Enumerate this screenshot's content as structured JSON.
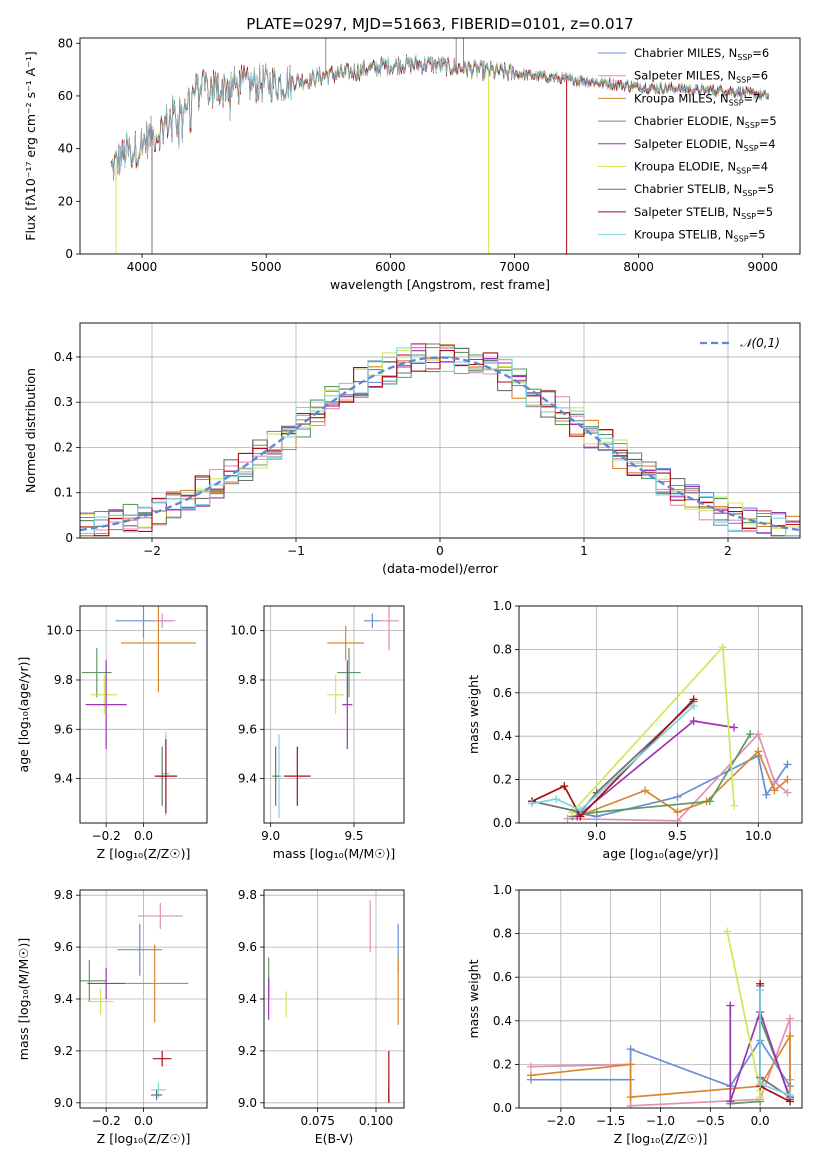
{
  "figure_title": "PLATE=0297, MJD=51663, FIBERID=0101, z=0.017",
  "colors": {
    "cm": "#6a8fd6",
    "sm": "#e18fb8",
    "km": "#d9862f",
    "ce": "#5c9a64",
    "se": "#9a34b0",
    "ke": "#cfe85a",
    "cs": "#6f6f6f",
    "ss": "#a80e16",
    "ks": "#7fd4df"
  },
  "legend": [
    {
      "key": "cm",
      "label": "Chabrier MILES, N",
      "sub": "SSP",
      "eq": "=6"
    },
    {
      "key": "sm",
      "label": "Salpeter MILES, N",
      "sub": "SSP",
      "eq": "=6"
    },
    {
      "key": "km",
      "label": "Kroupa MILES, N",
      "sub": "SSP",
      "eq": "=7"
    },
    {
      "key": "ce",
      "label": "Chabrier ELODIE, N",
      "sub": "SSP",
      "eq": "=5"
    },
    {
      "key": "se",
      "label": "Salpeter ELODIE, N",
      "sub": "SSP",
      "eq": "=4"
    },
    {
      "key": "ke",
      "label": "Kroupa ELODIE, N",
      "sub": "SSP",
      "eq": "=4"
    },
    {
      "key": "cs",
      "label": "Chabrier STELIB, N",
      "sub": "SSP",
      "eq": "=5"
    },
    {
      "key": "ss",
      "label": "Salpeter STELIB, N",
      "sub": "SSP",
      "eq": "=5"
    },
    {
      "key": "ks",
      "label": "Kroupa STELIB, N",
      "sub": "SSP",
      "eq": "=5"
    }
  ],
  "chart_data": [
    {
      "id": "spectrum",
      "type": "line",
      "xlabel": "wavelength [Angstrom, rest frame]",
      "ylabel": "Flux [fλ10⁻¹⁷ erg cm⁻² s⁻¹ A⁻¹]",
      "xlim": [
        3500,
        9300
      ],
      "ylim": [
        0,
        82
      ],
      "xticks": [
        4000,
        5000,
        6000,
        7000,
        8000,
        9000
      ],
      "yticks": [
        0,
        20,
        40,
        60,
        80
      ],
      "continuum": [
        [
          3750,
          32
        ],
        [
          3850,
          38
        ],
        [
          3950,
          40
        ],
        [
          4050,
          44
        ],
        [
          4150,
          47
        ],
        [
          4250,
          53
        ],
        [
          4350,
          58
        ],
        [
          4450,
          62
        ],
        [
          4550,
          63
        ],
        [
          4700,
          64
        ],
        [
          4850,
          64
        ],
        [
          5000,
          65
        ],
        [
          5150,
          65
        ],
        [
          5300,
          66
        ],
        [
          5500,
          68
        ],
        [
          5700,
          69
        ],
        [
          5900,
          71
        ],
        [
          6100,
          72
        ],
        [
          6300,
          72
        ],
        [
          6500,
          71
        ],
        [
          6700,
          70
        ],
        [
          6900,
          69
        ],
        [
          7100,
          68
        ],
        [
          7300,
          67
        ],
        [
          7500,
          66
        ],
        [
          7700,
          65
        ],
        [
          7900,
          64
        ],
        [
          8100,
          63
        ],
        [
          8300,
          63
        ],
        [
          8500,
          62
        ],
        [
          8700,
          62
        ],
        [
          8900,
          61
        ],
        [
          9050,
          60
        ]
      ],
      "drop_outs": [
        {
          "key": "cs",
          "x": 4080,
          "y": 0
        },
        {
          "key": "ke",
          "x": 3790,
          "y": 0
        },
        {
          "key": "ke",
          "x": 6790,
          "y": 0
        },
        {
          "key": "ss",
          "x": 7420,
          "y": 0
        }
      ],
      "spikes": [
        {
          "key": "cs",
          "x": 5480,
          "y": 82
        },
        {
          "key": "cs",
          "x": 6530,
          "y": 82
        },
        {
          "key": "cs",
          "x": 6590,
          "y": 82
        }
      ]
    },
    {
      "id": "residuals",
      "type": "line",
      "xlabel": "(data-model)/error",
      "ylabel": "Normed distribution",
      "xlim": [
        -2.5,
        2.5
      ],
      "ylim": [
        0,
        0.475
      ],
      "xticks": [
        -2,
        -1,
        0,
        1,
        2
      ],
      "yticks": [
        0,
        0.1,
        0.2,
        0.3,
        0.4
      ],
      "reference": {
        "label": "𝒩(0,1)",
        "mean": 0,
        "sigma": 1
      },
      "bin_width": 0.1
    },
    {
      "id": "age-vs-z",
      "type": "scatter",
      "xlabel": "Z [log₁₀(Z/Z☉)]",
      "ylabel": "age  [log₁₀(age/yr)]",
      "xlim": [
        -0.34,
        0.34
      ],
      "ylim": [
        9.22,
        10.1
      ],
      "xticks": [
        -0.2,
        0.0
      ],
      "xticklabels": [
        "−0.2",
        "0.0"
      ],
      "yticks": [
        9.4,
        9.6,
        9.8,
        10.0
      ],
      "yticklabels": [
        "9.4",
        "9.6",
        "9.8",
        "10.0"
      ],
      "points": [
        {
          "key": "cm",
          "x": 0.0,
          "y": 10.04,
          "xerr": 0.15,
          "yerr": 0.07
        },
        {
          "key": "sm",
          "x": 0.1,
          "y": 10.04,
          "xerr": 0.07,
          "yerr": 0.03
        },
        {
          "key": "km",
          "x": 0.08,
          "y": 9.95,
          "xerr": 0.2,
          "yerr": 0.2
        },
        {
          "key": "ce",
          "x": -0.25,
          "y": 9.83,
          "xerr": 0.08,
          "yerr": 0.1
        },
        {
          "key": "ke",
          "x": -0.21,
          "y": 9.74,
          "xerr": 0.07,
          "yerr": 0.08
        },
        {
          "key": "se",
          "x": -0.2,
          "y": 9.7,
          "xerr": 0.11,
          "yerr": 0.18
        },
        {
          "key": "ks",
          "x": 0.12,
          "y": 9.42,
          "xerr": 0.02,
          "yerr": 0.17
        },
        {
          "key": "cs",
          "x": 0.1,
          "y": 9.41,
          "xerr": 0.03,
          "yerr": 0.12
        },
        {
          "key": "ss",
          "x": 0.12,
          "y": 9.41,
          "xerr": 0.06,
          "yerr": 0.15
        }
      ]
    },
    {
      "id": "age-vs-mass",
      "type": "scatter",
      "xlabel": "mass [log₁₀(M/M☉)]",
      "ylabel": "",
      "xlim": [
        8.96,
        9.8
      ],
      "ylim": [
        9.22,
        10.1
      ],
      "xticks": [
        9.0,
        9.5
      ],
      "xticklabels": [
        "9.0",
        "9.5"
      ],
      "yticks": [
        9.4,
        9.6,
        9.8,
        10.0
      ],
      "yticklabels": [
        "9.4",
        "9.6",
        "9.8",
        "10.0"
      ],
      "points": [
        {
          "key": "cm",
          "x": 9.61,
          "y": 10.04,
          "xerr": 0.05,
          "yerr": 0.03
        },
        {
          "key": "sm",
          "x": 9.71,
          "y": 10.04,
          "xerr": 0.06,
          "yerr": 0.12
        },
        {
          "key": "km",
          "x": 9.45,
          "y": 9.95,
          "xerr": 0.11,
          "yerr": 0.07
        },
        {
          "key": "ce",
          "x": 9.47,
          "y": 9.83,
          "xerr": 0.07,
          "yerr": 0.1
        },
        {
          "key": "ke",
          "x": 9.39,
          "y": 9.74,
          "xerr": 0.05,
          "yerr": 0.08
        },
        {
          "key": "se",
          "x": 9.46,
          "y": 9.7,
          "xerr": 0.03,
          "yerr": 0.18
        },
        {
          "key": "ks",
          "x": 9.05,
          "y": 9.41,
          "xerr": 0.02,
          "yerr": 0.17
        },
        {
          "key": "cs",
          "x": 9.03,
          "y": 9.41,
          "xerr": 0.02,
          "yerr": 0.12
        },
        {
          "key": "ss",
          "x": 9.16,
          "y": 9.41,
          "xerr": 0.08,
          "yerr": 0.12
        }
      ]
    },
    {
      "id": "weight-vs-age",
      "type": "line",
      "xlabel": "age  [log₁₀(age/yr)]",
      "ylabel": "mass weight",
      "xlim": [
        8.52,
        10.27
      ],
      "ylim": [
        0,
        1.0
      ],
      "xticks": [
        9.0,
        9.5,
        10.0
      ],
      "xticklabels": [
        "9.0",
        "9.5",
        "10.0"
      ],
      "yticks": [
        0,
        0.2,
        0.4,
        0.6,
        0.8,
        1.0
      ],
      "yticklabels": [
        "0.0",
        "0.2",
        "0.4",
        "0.6",
        "0.8",
        "1.0"
      ],
      "series": [
        {
          "key": "cm",
          "points": [
            [
              8.85,
              0.05
            ],
            [
              9.0,
              0.03
            ],
            [
              9.5,
              0.12
            ],
            [
              10.0,
              0.31
            ],
            [
              10.05,
              0.13
            ],
            [
              10.18,
              0.27
            ]
          ]
        },
        {
          "key": "sm",
          "points": [
            [
              8.82,
              0.02
            ],
            [
              9.5,
              0.01
            ],
            [
              10.0,
              0.41
            ],
            [
              10.1,
              0.19
            ],
            [
              10.18,
              0.14
            ]
          ]
        },
        {
          "key": "km",
          "points": [
            [
              8.88,
              0.03
            ],
            [
              9.3,
              0.15
            ],
            [
              9.5,
              0.05
            ],
            [
              9.68,
              0.1
            ],
            [
              10.0,
              0.33
            ],
            [
              10.1,
              0.15
            ],
            [
              10.18,
              0.2
            ]
          ]
        },
        {
          "key": "ce",
          "points": [
            [
              8.85,
              0.03
            ],
            [
              9.0,
              0.05
            ],
            [
              9.7,
              0.1
            ],
            [
              9.95,
              0.41
            ]
          ]
        },
        {
          "key": "se",
          "points": [
            [
              8.88,
              0.03
            ],
            [
              9.6,
              0.47
            ],
            [
              9.85,
              0.44
            ]
          ]
        },
        {
          "key": "ke",
          "points": [
            [
              8.85,
              0.05
            ],
            [
              9.78,
              0.81
            ],
            [
              9.85,
              0.08
            ]
          ]
        },
        {
          "key": "cs",
          "points": [
            [
              8.6,
              0.1
            ],
            [
              8.9,
              0.05
            ],
            [
              9.0,
              0.14
            ],
            [
              9.6,
              0.56
            ]
          ]
        },
        {
          "key": "ss",
          "points": [
            [
              8.6,
              0.1
            ],
            [
              8.8,
              0.17
            ],
            [
              8.9,
              0.03
            ],
            [
              9.6,
              0.57
            ]
          ]
        },
        {
          "key": "ks",
          "points": [
            [
              8.6,
              0.09
            ],
            [
              8.75,
              0.11
            ],
            [
              8.9,
              0.06
            ],
            [
              9.6,
              0.54
            ]
          ]
        }
      ]
    },
    {
      "id": "mass-vs-z",
      "type": "scatter",
      "xlabel": "Z [log₁₀(Z/Z☉)]",
      "ylabel": "mass [log₁₀(M/M☉)]",
      "xlim": [
        -0.34,
        0.34
      ],
      "ylim": [
        8.98,
        9.82
      ],
      "xticks": [
        -0.2,
        0.0
      ],
      "xticklabels": [
        "−0.2",
        "0.0"
      ],
      "yticks": [
        9.0,
        9.2,
        9.4,
        9.6,
        9.8
      ],
      "yticklabels": [
        "9.0",
        "9.2",
        "9.4",
        "9.6",
        "9.8"
      ],
      "points": [
        {
          "key": "cm",
          "x": -0.02,
          "y": 9.59,
          "xerr": 0.12,
          "yerr": 0.1
        },
        {
          "key": "sm",
          "x": 0.09,
          "y": 9.72,
          "xerr": 0.12,
          "yerr": 0.05
        },
        {
          "key": "km",
          "x": 0.06,
          "y": 9.46,
          "xerr": 0.18,
          "yerr": 0.15
        },
        {
          "key": "ce",
          "x": -0.29,
          "y": 9.47,
          "xerr": 0.09,
          "yerr": 0.08
        },
        {
          "key": "ke",
          "x": -0.23,
          "y": 9.39,
          "xerr": 0.07,
          "yerr": 0.05
        },
        {
          "key": "se",
          "x": -0.2,
          "y": 9.46,
          "xerr": 0.1,
          "yerr": 0.06
        },
        {
          "key": "ks",
          "x": 0.08,
          "y": 9.05,
          "xerr": 0.04,
          "yerr": 0.03
        },
        {
          "key": "cs",
          "x": 0.07,
          "y": 9.03,
          "xerr": 0.03,
          "yerr": 0.02
        },
        {
          "key": "ss",
          "x": 0.1,
          "y": 9.17,
          "xerr": 0.05,
          "yerr": 0.03
        }
      ]
    },
    {
      "id": "mass-vs-ebv",
      "type": "scatter",
      "xlabel": "E(B-V)",
      "ylabel": "",
      "xlim": [
        0.052,
        0.112
      ],
      "ylim": [
        8.98,
        9.82
      ],
      "xticks": [
        0.075,
        0.1
      ],
      "xticklabels": [
        "0.075",
        "0.100"
      ],
      "yticks": [
        9.0,
        9.2,
        9.4,
        9.6,
        9.8
      ],
      "yticklabels": [
        "9.0",
        "9.2",
        "9.4",
        "9.6",
        "9.8"
      ],
      "points": [
        {
          "key": "cm",
          "x": 0.1095,
          "y": 9.6,
          "xerr": 0,
          "yerr": 0.09
        },
        {
          "key": "sm",
          "x": 0.0975,
          "y": 9.68,
          "xerr": 0,
          "yerr": 0.1
        },
        {
          "key": "km",
          "x": 0.1095,
          "y": 9.43,
          "xerr": 0,
          "yerr": 0.13
        },
        {
          "key": "ce",
          "x": 0.054,
          "y": 9.48,
          "xerr": 0,
          "yerr": 0.08
        },
        {
          "key": "ke",
          "x": 0.0615,
          "y": 9.38,
          "xerr": 0,
          "yerr": 0.05
        },
        {
          "key": "se",
          "x": 0.054,
          "y": 9.4,
          "xerr": 0,
          "yerr": 0.08
        },
        {
          "key": "ks",
          "x": 0.1055,
          "y": 9.05,
          "xerr": 0,
          "yerr": 0.05
        },
        {
          "key": "cs",
          "x": 0.1055,
          "y": 9.03,
          "xerr": 0,
          "yerr": 0.03
        },
        {
          "key": "ss",
          "x": 0.1055,
          "y": 9.1,
          "xerr": 0,
          "yerr": 0.1
        }
      ]
    },
    {
      "id": "weight-vs-z",
      "type": "line",
      "xlabel": "Z [log₁₀(Z/Z☉)]",
      "ylabel": "mass weight",
      "xlim": [
        -2.42,
        0.42
      ],
      "ylim": [
        0,
        1.0
      ],
      "xticks": [
        -2.0,
        -1.5,
        -1.0,
        -0.5,
        0.0
      ],
      "xticklabels": [
        "−2.0",
        "−1.5",
        "−1.0",
        "−0.5",
        "0.0"
      ],
      "yticks": [
        0,
        0.2,
        0.4,
        0.6,
        0.8,
        1.0
      ],
      "yticklabels": [
        "0.0",
        "0.2",
        "0.4",
        "0.6",
        "0.8",
        "1.0"
      ],
      "series": [
        {
          "key": "cm",
          "points": [
            [
              -2.3,
              0.13
            ],
            [
              -1.3,
              0.13
            ],
            [
              -1.3,
              0.27
            ],
            [
              -0.3,
              0.1
            ],
            [
              0.0,
              0.31
            ],
            [
              0.3,
              0.1
            ]
          ]
        },
        {
          "key": "sm",
          "points": [
            [
              -2.3,
              0.19
            ],
            [
              -1.3,
              0.2
            ],
            [
              -1.3,
              0.01
            ],
            [
              0.0,
              0.04
            ],
            [
              0.3,
              0.41
            ],
            [
              0.3,
              0.13
            ]
          ]
        },
        {
          "key": "km",
          "points": [
            [
              -2.3,
              0.15
            ],
            [
              -1.3,
              0.2
            ],
            [
              -1.3,
              0.05
            ],
            [
              0.0,
              0.1
            ],
            [
              0.3,
              0.33
            ],
            [
              0.3,
              0.05
            ]
          ]
        },
        {
          "key": "ce",
          "points": [
            [
              -0.3,
              0.02
            ],
            [
              0.0,
              0.03
            ],
            [
              0.0,
              0.41
            ],
            [
              0.3,
              0.05
            ]
          ]
        },
        {
          "key": "se",
          "points": [
            [
              -0.3,
              0.47
            ],
            [
              -0.3,
              0.03
            ],
            [
              0.0,
              0.44
            ],
            [
              0.3,
              0.04
            ]
          ]
        },
        {
          "key": "ke",
          "points": [
            [
              -0.33,
              0.81
            ],
            [
              0.0,
              0.08
            ],
            [
              0.0,
              0.05
            ]
          ]
        },
        {
          "key": "cs",
          "points": [
            [
              0.0,
              0.56
            ],
            [
              0.0,
              0.14
            ],
            [
              0.3,
              0.05
            ]
          ]
        },
        {
          "key": "ss",
          "points": [
            [
              0.0,
              0.57
            ],
            [
              0.0,
              0.1
            ],
            [
              0.3,
              0.03
            ]
          ]
        },
        {
          "key": "ks",
          "points": [
            [
              0.0,
              0.54
            ],
            [
              0.0,
              0.11
            ],
            [
              0.3,
              0.06
            ]
          ]
        }
      ]
    }
  ]
}
